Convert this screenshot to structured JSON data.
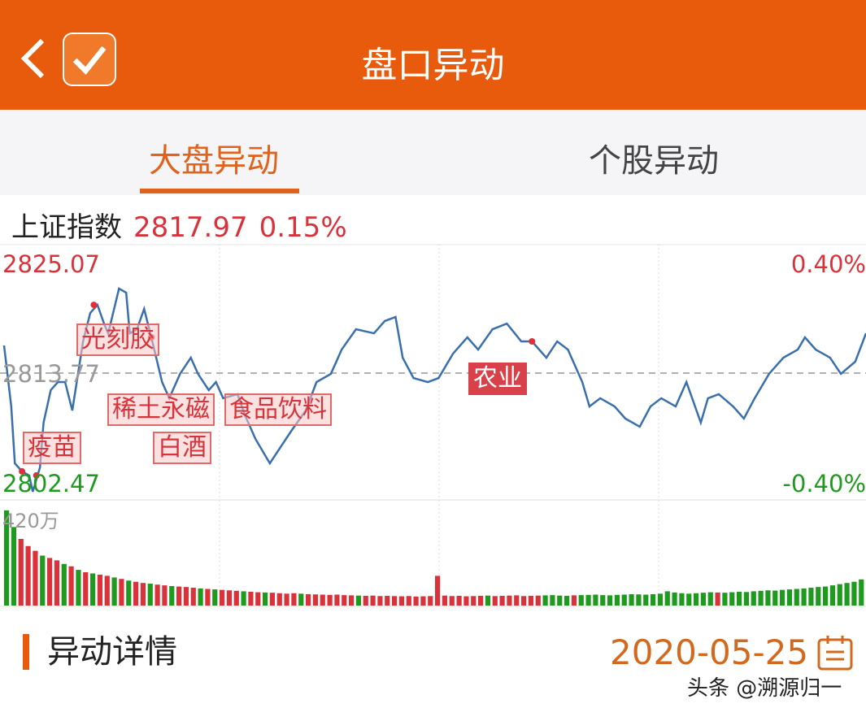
{
  "header": {
    "title": "盘口异动"
  },
  "tabs": [
    {
      "label": "大盘异动",
      "active": true
    },
    {
      "label": "个股异动",
      "active": false
    }
  ],
  "index": {
    "name": "上证指数",
    "value": "2817.97",
    "change": "0.15%"
  },
  "colors": {
    "brand": "#e85a0c",
    "up": "#d9323b",
    "down": "#1f9a1f",
    "line": "#3a6fae"
  },
  "chart_data": {
    "type": "line",
    "ylim": [
      2802.47,
      2825.07
    ],
    "y_top_label": "2825.07",
    "y_mid_label": "2813.77",
    "y_bottom_label": "2802.47",
    "pct_top_label": "0.40%",
    "pct_bottom_label": "-0.40%",
    "volume_max_label": "420万",
    "xlim_minutes": [
      0,
      240
    ],
    "points": [
      [
        0,
        2816.3
      ],
      [
        2,
        2810.72
      ],
      [
        3,
        2805.52
      ],
      [
        5,
        2804.78
      ],
      [
        7,
        2804.41
      ],
      [
        8,
        2802.92
      ],
      [
        10,
        2805.15
      ],
      [
        11,
        2809.24
      ],
      [
        13,
        2812.21
      ],
      [
        15,
        2812.95
      ],
      [
        17,
        2812.95
      ],
      [
        19,
        2810.35
      ],
      [
        22,
        2816.67
      ],
      [
        24,
        2819.27
      ],
      [
        26,
        2820.01
      ],
      [
        28,
        2818.15
      ],
      [
        29,
        2817.41
      ],
      [
        32,
        2821.5
      ],
      [
        34,
        2821.13
      ],
      [
        35,
        2817.41
      ],
      [
        37,
        2817.78
      ],
      [
        39,
        2819.64
      ],
      [
        41,
        2817.04
      ],
      [
        44,
        2812.95
      ],
      [
        46,
        2811.47
      ],
      [
        49,
        2813.7
      ],
      [
        52,
        2815.18
      ],
      [
        54,
        2813.7
      ],
      [
        57,
        2812.21
      ],
      [
        59,
        2812.95
      ],
      [
        61,
        2811.47
      ],
      [
        65,
        2811.84
      ],
      [
        67,
        2809.98
      ],
      [
        70,
        2807.75
      ],
      [
        74,
        2805.52
      ],
      [
        77,
        2807.01
      ],
      [
        80,
        2808.49
      ],
      [
        84,
        2810.35
      ],
      [
        87,
        2812.95
      ],
      [
        91,
        2813.7
      ],
      [
        94,
        2815.92
      ],
      [
        98,
        2817.78
      ],
      [
        103,
        2817.41
      ],
      [
        106,
        2818.53
      ],
      [
        109,
        2818.9
      ],
      [
        111,
        2815.18
      ],
      [
        114,
        2813.32
      ],
      [
        118,
        2812.95
      ],
      [
        121,
        2813.32
      ],
      [
        125,
        2815.55
      ],
      [
        129,
        2817.04
      ],
      [
        132,
        2815.92
      ],
      [
        136,
        2817.78
      ],
      [
        140,
        2818.3
      ],
      [
        144,
        2816.67
      ],
      [
        147,
        2816.67
      ],
      [
        151,
        2815.18
      ],
      [
        154,
        2816.67
      ],
      [
        157,
        2815.92
      ],
      [
        161,
        2812.95
      ],
      [
        163,
        2810.72
      ],
      [
        166,
        2811.47
      ],
      [
        170,
        2810.72
      ],
      [
        173,
        2809.61
      ],
      [
        177,
        2808.87
      ],
      [
        180,
        2810.72
      ],
      [
        183,
        2811.47
      ],
      [
        187,
        2810.72
      ],
      [
        190,
        2812.95
      ],
      [
        194,
        2809.24
      ],
      [
        196,
        2811.47
      ],
      [
        199,
        2811.84
      ],
      [
        203,
        2810.72
      ],
      [
        206,
        2809.61
      ],
      [
        209,
        2811.47
      ],
      [
        213,
        2813.7
      ],
      [
        217,
        2815.18
      ],
      [
        221,
        2815.92
      ],
      [
        223,
        2817.04
      ],
      [
        226,
        2815.92
      ],
      [
        230,
        2815.18
      ],
      [
        233,
        2813.7
      ],
      [
        237,
        2814.81
      ],
      [
        240,
        2817.41
      ]
    ],
    "annotations": [
      {
        "text": "疫苗",
        "minute": 5,
        "price": 2804.78
      },
      {
        "text": "稀土永磁",
        "minute": 9,
        "price": 2804.41
      },
      {
        "text": "光刻胶",
        "minute": 25,
        "price": 2820.01
      },
      {
        "text": "食品饮料",
        "minute": 41,
        "price": 2817.04
      },
      {
        "text": "白酒",
        "minute": 41,
        "price": 2817.04
      },
      {
        "text": "农业",
        "minute": 147,
        "price": 2816.67
      }
    ],
    "volume": [
      400,
      330,
      280,
      250,
      230,
      210,
      200,
      190,
      175,
      165,
      150,
      140,
      135,
      130,
      125,
      118,
      112,
      105,
      100,
      95,
      92,
      88,
      85,
      82,
      80,
      78,
      75,
      72,
      70,
      68,
      66,
      64,
      62,
      60,
      58,
      56,
      55,
      54,
      52,
      50,
      52,
      50,
      48,
      47,
      46,
      45,
      46,
      44,
      43,
      42,
      41,
      42,
      40,
      41,
      40,
      39,
      40,
      38,
      39,
      40,
      125,
      42,
      40,
      41,
      39,
      40,
      41,
      42,
      40,
      41,
      42,
      43,
      40,
      41,
      42,
      43,
      44,
      42,
      41,
      43,
      44,
      45,
      46,
      44,
      43,
      45,
      46,
      48,
      47,
      46,
      48,
      50,
      60,
      55,
      52,
      50,
      52,
      54,
      56,
      55,
      54,
      56,
      58,
      57,
      60,
      62,
      64,
      63,
      66,
      68,
      70,
      72,
      75,
      78,
      80,
      85,
      90,
      95,
      100,
      110
    ],
    "volume_colors": "ggrrrgrrgrgrgrrgrgrrgrrgrrrgrgrrrgrrgrrrrgrrrrrrrgrrrrrrrrrrrrrrrrrgrrrrrrrggggrgggggggggggggggggggrgggggggggggggggggggg"
  },
  "details": {
    "title": "异动详情",
    "date": "2020-05-25"
  },
  "watermark": "头条 @溯源归一"
}
